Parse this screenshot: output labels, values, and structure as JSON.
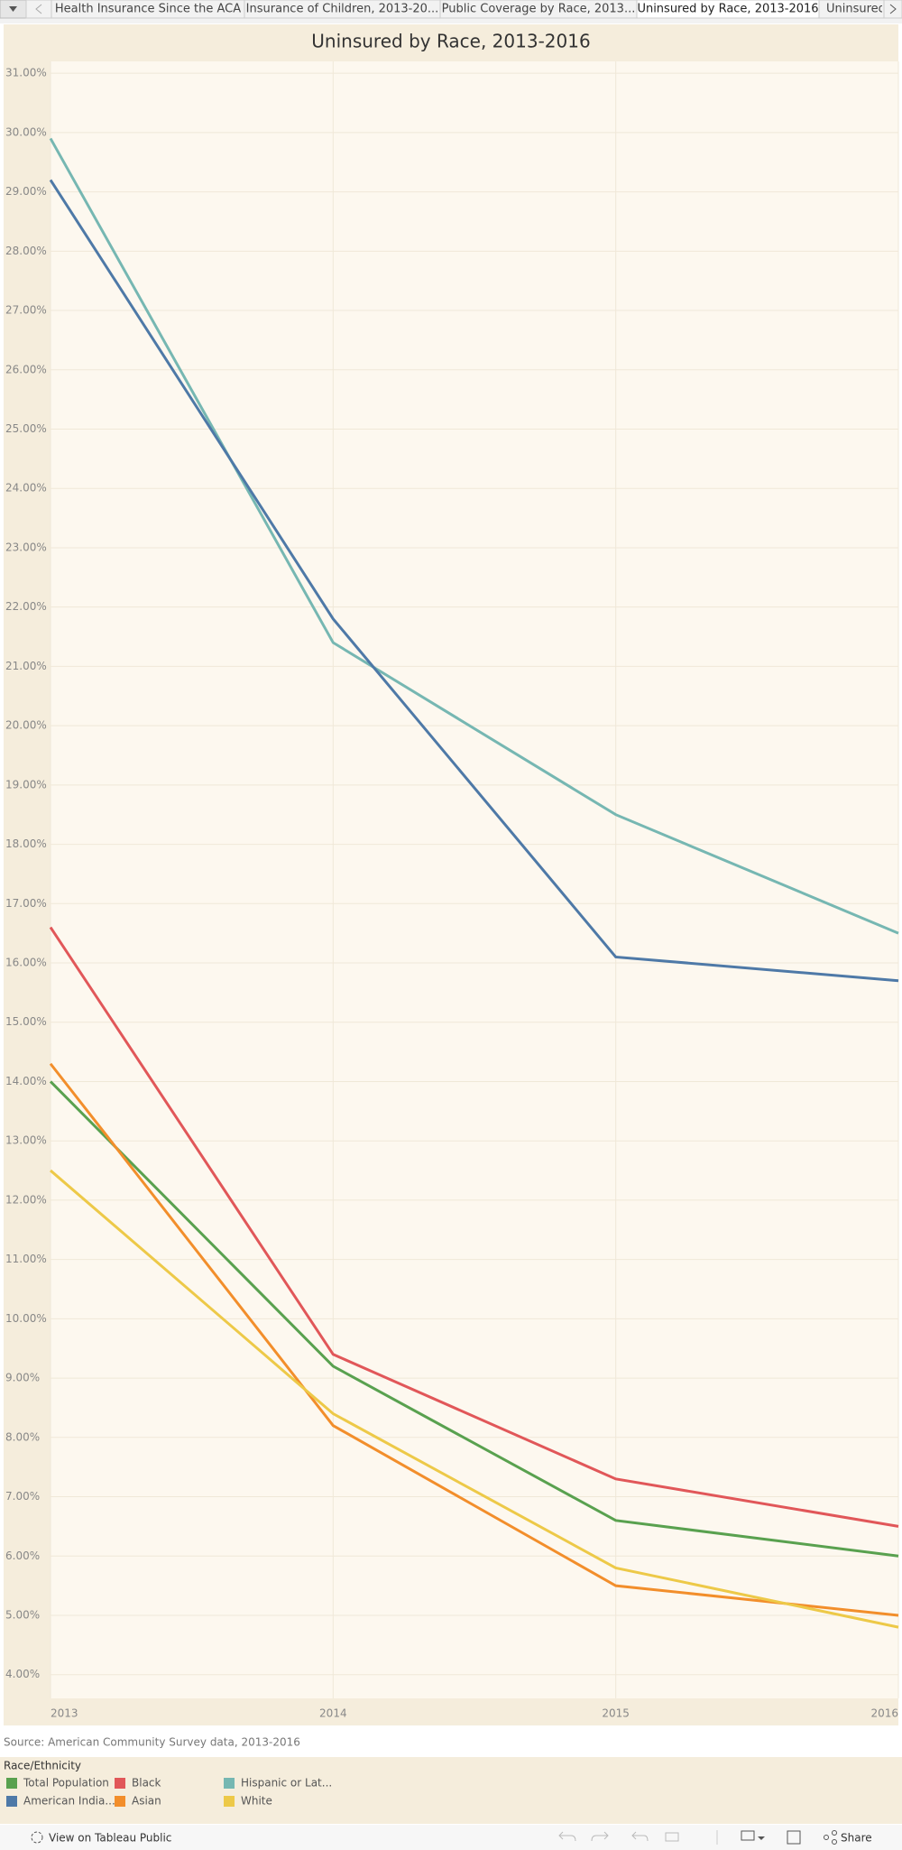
{
  "tabs": [
    "Health Insurance Since the ACA",
    "Insurance of Children, 2013-20...",
    "Public Coverage by Race, 2013...",
    "Uninsured by Race, 2013-2016",
    "Uninsured..."
  ],
  "footer": {
    "view_link": "View on Tableau Public",
    "share": "Share"
  },
  "chart_data": {
    "type": "line",
    "title": "Uninsured by Race, 2013-2016",
    "source": "Source: American Community Survey data, 2013-2016",
    "legend_title": "Race/Ethnicity",
    "x": [
      2013,
      2014,
      2015,
      2016
    ],
    "xlim": [
      2013,
      2016
    ],
    "xticks": [
      2013,
      2014,
      2015,
      2016
    ],
    "ylim": [
      3.6,
      31.2
    ],
    "yticks": [
      {
        "value": 4,
        "label": "4.00%"
      },
      {
        "value": 5,
        "label": "5.00%"
      },
      {
        "value": 6,
        "label": "6.00%"
      },
      {
        "value": 7,
        "label": "7.00%"
      },
      {
        "value": 8,
        "label": "8.00%"
      },
      {
        "value": 9,
        "label": "9.00%"
      },
      {
        "value": 10,
        "label": "10.00%"
      },
      {
        "value": 11,
        "label": "11.00%"
      },
      {
        "value": 12,
        "label": "12.00%"
      },
      {
        "value": 13,
        "label": "13.00%"
      },
      {
        "value": 14,
        "label": "14.00%"
      },
      {
        "value": 15,
        "label": "15.00%"
      },
      {
        "value": 16,
        "label": "16.00%"
      },
      {
        "value": 17,
        "label": "17.00%"
      },
      {
        "value": 18,
        "label": "18.00%"
      },
      {
        "value": 19,
        "label": "19.00%"
      },
      {
        "value": 20,
        "label": "20.00%"
      },
      {
        "value": 21,
        "label": "21.00%"
      },
      {
        "value": 22,
        "label": "22.00%"
      },
      {
        "value": 23,
        "label": "23.00%"
      },
      {
        "value": 24,
        "label": "24.00%"
      },
      {
        "value": 25,
        "label": "25.00%"
      },
      {
        "value": 26,
        "label": "26.00%"
      },
      {
        "value": 27,
        "label": "27.00%"
      },
      {
        "value": 28,
        "label": "28.00%"
      },
      {
        "value": 29,
        "label": "29.00%"
      },
      {
        "value": 30,
        "label": "30.00%"
      },
      {
        "value": 31,
        "label": "31.00%"
      }
    ],
    "grid": true,
    "series": [
      {
        "name": "Total Population",
        "color": "#59a14f",
        "values": [
          14.0,
          9.2,
          6.6,
          6.0
        ]
      },
      {
        "name": "Black",
        "color": "#e15759",
        "values": [
          16.6,
          9.4,
          7.3,
          6.5
        ]
      },
      {
        "name": "Hispanic or Lat...",
        "color": "#76b7b2",
        "values": [
          29.9,
          21.4,
          18.5,
          16.5
        ]
      },
      {
        "name": "American India...",
        "color": "#4e79a7",
        "values": [
          29.2,
          21.8,
          16.1,
          15.7
        ]
      },
      {
        "name": "Asian",
        "color": "#f28e2b",
        "values": [
          14.3,
          8.2,
          5.5,
          5.0
        ]
      },
      {
        "name": "White",
        "color": "#edc948",
        "values": [
          12.5,
          8.4,
          5.8,
          4.8
        ]
      }
    ]
  }
}
